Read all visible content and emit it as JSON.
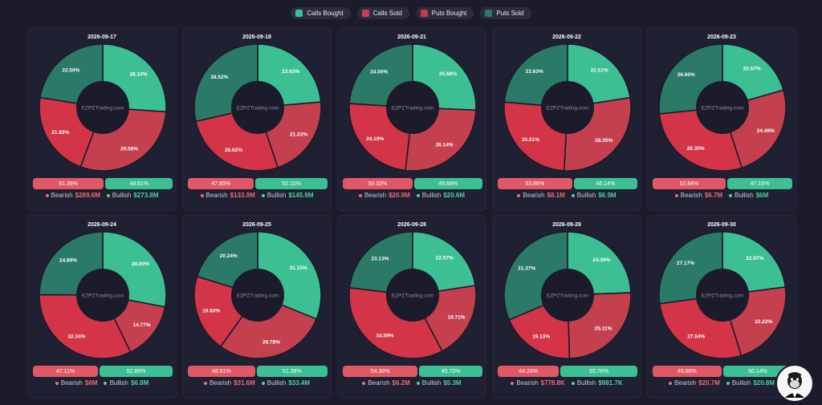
{
  "legend": {
    "items": [
      {
        "label": "Calls Bought",
        "color": "#3dbf94"
      },
      {
        "label": "Calls Sold",
        "color": "#c4404f"
      },
      {
        "label": "Puts Bought",
        "color": "#d33448"
      },
      {
        "label": "Puts Sold",
        "color": "#2a7a67"
      }
    ]
  },
  "labels": {
    "bearish": "Bearish",
    "bullish": "Bullish",
    "watermark": "EZPZTrading.com"
  },
  "colors": {
    "calls_bought": "#3dbf94",
    "calls_sold": "#c4404f",
    "puts_bought": "#d33448",
    "puts_sold": "#2a7a67",
    "hole": "#1b1b2b"
  },
  "avatar": {
    "icon": "gorilla-mascot-icon"
  },
  "chart_data": [
    {
      "type": "pie",
      "title": "2026-09-17",
      "categories": [
        "Calls Bought",
        "Calls Sold",
        "Puts Bought",
        "Puts Sold"
      ],
      "values": [
        26.1,
        29.58,
        21.82,
        22.5
      ],
      "value_labels": [
        "26.10%",
        "29.58%",
        "21.82%",
        "22.50%"
      ],
      "bearish_pct": "51.39%",
      "bullish_pct": "48.61%",
      "bearish_total": "$289.6M",
      "bullish_total": "$273.8M"
    },
    {
      "type": "pie",
      "title": "2026-09-18",
      "categories": [
        "Calls Bought",
        "Calls Sold",
        "Puts Bought",
        "Puts Sold"
      ],
      "values": [
        23.63,
        21.23,
        26.62,
        28.52
      ],
      "value_labels": [
        "23.63%",
        "21.23%",
        "26.62%",
        "28.52%"
      ],
      "bearish_pct": "47.85%",
      "bullish_pct": "52.15%",
      "bearish_total": "$133.9M",
      "bullish_total": "$145.9M"
    },
    {
      "type": "pie",
      "title": "2026-09-21",
      "categories": [
        "Calls Bought",
        "Calls Sold",
        "Puts Bought",
        "Puts Sold"
      ],
      "values": [
        25.68,
        26.14,
        24.19,
        24.0
      ],
      "value_labels": [
        "25.68%",
        "26.14%",
        "24.19%",
        "24.00%"
      ],
      "bearish_pct": "50.32%",
      "bullish_pct": "49.68%",
      "bearish_total": "$20.9M",
      "bullish_total": "$20.6M"
    },
    {
      "type": "pie",
      "title": "2026-09-22",
      "categories": [
        "Calls Bought",
        "Calls Sold",
        "Puts Bought",
        "Puts Sold"
      ],
      "values": [
        22.51,
        28.35,
        25.51,
        23.63
      ],
      "value_labels": [
        "22.51%",
        "28.35%",
        "25.51%",
        "23.63%"
      ],
      "bearish_pct": "53.86%",
      "bullish_pct": "46.14%",
      "bearish_total": "$8.1M",
      "bullish_total": "$6.9M"
    },
    {
      "type": "pie",
      "title": "2026-09-23",
      "categories": [
        "Calls Bought",
        "Calls Sold",
        "Puts Bought",
        "Puts Sold"
      ],
      "values": [
        20.57,
        24.49,
        28.35,
        26.6
      ],
      "value_labels": [
        "20.57%",
        "24.49%",
        "28.35%",
        "26.60%"
      ],
      "bearish_pct": "52.84%",
      "bullish_pct": "47.16%",
      "bearish_total": "$6.7M",
      "bullish_total": "$6M"
    },
    {
      "type": "pie",
      "title": "2026-09-24",
      "categories": [
        "Calls Bought",
        "Calls Sold",
        "Puts Bought",
        "Puts Sold"
      ],
      "values": [
        28.0,
        14.77,
        32.34,
        24.89
      ],
      "value_labels": [
        "28.00%",
        "14.77%",
        "32.34%",
        "24.89%"
      ],
      "bearish_pct": "47.11%",
      "bullish_pct": "52.89%",
      "bearish_total": "$6M",
      "bullish_total": "$6.8M"
    },
    {
      "type": "pie",
      "title": "2026-09-25",
      "categories": [
        "Calls Bought",
        "Calls Sold",
        "Puts Bought",
        "Puts Sold"
      ],
      "values": [
        31.15,
        28.78,
        19.83,
        20.24
      ],
      "value_labels": [
        "31.15%",
        "28.78%",
        "19.83%",
        "20.24%"
      ],
      "bearish_pct": "48.61%",
      "bullish_pct": "51.39%",
      "bearish_total": "$31.6M",
      "bullish_total": "$33.4M"
    },
    {
      "type": "pie",
      "title": "2026-09-28",
      "categories": [
        "Calls Bought",
        "Calls Sold",
        "Puts Bought",
        "Puts Sold"
      ],
      "values": [
        22.57,
        19.71,
        34.59,
        23.13
      ],
      "value_labels": [
        "22.57%",
        "19.71%",
        "34.59%",
        "23.13%"
      ],
      "bearish_pct": "54.30%",
      "bullish_pct": "45.70%",
      "bearish_total": "$6.2M",
      "bullish_total": "$5.3M"
    },
    {
      "type": "pie",
      "title": "2026-09-29",
      "categories": [
        "Calls Bought",
        "Calls Sold",
        "Puts Bought",
        "Puts Sold"
      ],
      "values": [
        24.39,
        25.11,
        19.13,
        31.37
      ],
      "value_labels": [
        "24.39%",
        "25.11%",
        "19.13%",
        "31.37%"
      ],
      "bearish_pct": "44.24%",
      "bullish_pct": "55.76%",
      "bearish_total": "$778.8K",
      "bullish_total": "$981.7K"
    },
    {
      "type": "pie",
      "title": "2026-09-30",
      "categories": [
        "Calls Bought",
        "Calls Sold",
        "Puts Bought",
        "Puts Sold"
      ],
      "values": [
        22.97,
        22.22,
        27.64,
        27.17
      ],
      "value_labels": [
        "22.97%",
        "22.22%",
        "27.64%",
        "27.17%"
      ],
      "bearish_pct": "49.86%",
      "bullish_pct": "50.14%",
      "bearish_total": "$20.7M",
      "bullish_total": "$20.8M"
    }
  ]
}
